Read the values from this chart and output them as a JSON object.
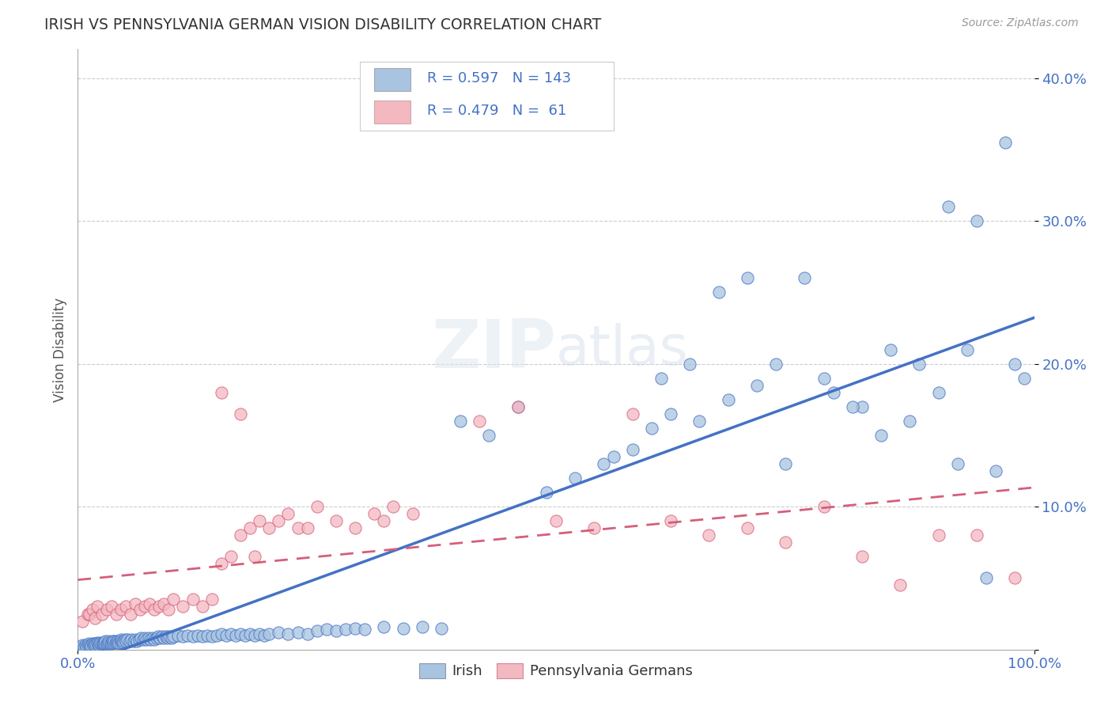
{
  "title": "IRISH VS PENNSYLVANIA GERMAN VISION DISABILITY CORRELATION CHART",
  "source": "Source: ZipAtlas.com",
  "ylabel": "Vision Disability",
  "xlim": [
    0,
    1
  ],
  "ylim": [
    0,
    0.42
  ],
  "irish_R": 0.597,
  "irish_N": 143,
  "pg_R": 0.479,
  "pg_N": 61,
  "irish_color": "#a8c4e0",
  "irish_line_color": "#4472c4",
  "pg_color": "#f4b8c1",
  "pg_line_color": "#d45f7a",
  "bg_color": "#ffffff",
  "legend_irish": "Irish",
  "legend_pg": "Pennsylvania Germans",
  "irish_x": [
    0.003,
    0.005,
    0.006,
    0.008,
    0.009,
    0.01,
    0.011,
    0.012,
    0.013,
    0.014,
    0.015,
    0.016,
    0.017,
    0.018,
    0.019,
    0.02,
    0.021,
    0.022,
    0.023,
    0.024,
    0.025,
    0.026,
    0.027,
    0.028,
    0.029,
    0.03,
    0.031,
    0.032,
    0.033,
    0.034,
    0.035,
    0.036,
    0.037,
    0.038,
    0.039,
    0.04,
    0.041,
    0.042,
    0.043,
    0.044,
    0.045,
    0.046,
    0.047,
    0.048,
    0.049,
    0.05,
    0.052,
    0.054,
    0.056,
    0.058,
    0.06,
    0.062,
    0.064,
    0.066,
    0.068,
    0.07,
    0.072,
    0.074,
    0.076,
    0.078,
    0.08,
    0.082,
    0.084,
    0.086,
    0.088,
    0.09,
    0.092,
    0.094,
    0.096,
    0.098,
    0.1,
    0.105,
    0.11,
    0.115,
    0.12,
    0.125,
    0.13,
    0.135,
    0.14,
    0.145,
    0.15,
    0.155,
    0.16,
    0.165,
    0.17,
    0.175,
    0.18,
    0.185,
    0.19,
    0.195,
    0.2,
    0.21,
    0.22,
    0.23,
    0.24,
    0.25,
    0.26,
    0.27,
    0.28,
    0.29,
    0.3,
    0.32,
    0.34,
    0.36,
    0.38,
    0.4,
    0.43,
    0.46,
    0.49,
    0.52,
    0.55,
    0.58,
    0.61,
    0.64,
    0.67,
    0.7,
    0.73,
    0.76,
    0.79,
    0.82,
    0.85,
    0.88,
    0.91,
    0.94,
    0.56,
    0.6,
    0.62,
    0.65,
    0.68,
    0.71,
    0.74,
    0.78,
    0.81,
    0.84,
    0.87,
    0.9,
    0.93,
    0.96,
    0.98,
    0.99,
    0.97,
    0.95,
    0.92
  ],
  "irish_y": [
    0.002,
    0.003,
    0.002,
    0.003,
    0.002,
    0.003,
    0.004,
    0.003,
    0.002,
    0.003,
    0.004,
    0.003,
    0.004,
    0.003,
    0.004,
    0.005,
    0.004,
    0.003,
    0.004,
    0.005,
    0.004,
    0.005,
    0.004,
    0.005,
    0.006,
    0.004,
    0.005,
    0.006,
    0.005,
    0.004,
    0.005,
    0.006,
    0.005,
    0.006,
    0.005,
    0.006,
    0.005,
    0.006,
    0.005,
    0.006,
    0.007,
    0.006,
    0.005,
    0.006,
    0.007,
    0.006,
    0.007,
    0.006,
    0.007,
    0.006,
    0.007,
    0.006,
    0.007,
    0.008,
    0.007,
    0.008,
    0.007,
    0.008,
    0.007,
    0.008,
    0.007,
    0.008,
    0.009,
    0.008,
    0.009,
    0.008,
    0.009,
    0.008,
    0.009,
    0.008,
    0.009,
    0.01,
    0.009,
    0.01,
    0.009,
    0.01,
    0.009,
    0.01,
    0.009,
    0.01,
    0.011,
    0.01,
    0.011,
    0.01,
    0.011,
    0.01,
    0.011,
    0.01,
    0.011,
    0.01,
    0.011,
    0.012,
    0.011,
    0.012,
    0.011,
    0.013,
    0.014,
    0.013,
    0.014,
    0.015,
    0.014,
    0.016,
    0.015,
    0.016,
    0.015,
    0.16,
    0.15,
    0.17,
    0.11,
    0.12,
    0.13,
    0.14,
    0.19,
    0.2,
    0.25,
    0.26,
    0.2,
    0.26,
    0.18,
    0.17,
    0.21,
    0.2,
    0.31,
    0.3,
    0.135,
    0.155,
    0.165,
    0.16,
    0.175,
    0.185,
    0.13,
    0.19,
    0.17,
    0.15,
    0.16,
    0.18,
    0.21,
    0.125,
    0.2,
    0.19,
    0.355,
    0.05,
    0.13
  ],
  "pg_x": [
    0.005,
    0.01,
    0.012,
    0.015,
    0.018,
    0.02,
    0.025,
    0.03,
    0.035,
    0.04,
    0.045,
    0.05,
    0.055,
    0.06,
    0.065,
    0.07,
    0.075,
    0.08,
    0.085,
    0.09,
    0.095,
    0.1,
    0.11,
    0.12,
    0.13,
    0.14,
    0.15,
    0.16,
    0.17,
    0.18,
    0.19,
    0.2,
    0.21,
    0.22,
    0.23,
    0.25,
    0.27,
    0.29,
    0.31,
    0.33,
    0.35,
    0.15,
    0.32,
    0.42,
    0.46,
    0.5,
    0.54,
    0.58,
    0.62,
    0.66,
    0.7,
    0.74,
    0.78,
    0.82,
    0.86,
    0.9,
    0.94,
    0.98,
    0.17,
    0.185,
    0.24
  ],
  "pg_y": [
    0.02,
    0.025,
    0.025,
    0.028,
    0.022,
    0.03,
    0.025,
    0.028,
    0.03,
    0.025,
    0.028,
    0.03,
    0.025,
    0.032,
    0.028,
    0.03,
    0.032,
    0.028,
    0.03,
    0.032,
    0.028,
    0.035,
    0.03,
    0.035,
    0.03,
    0.035,
    0.06,
    0.065,
    0.08,
    0.085,
    0.09,
    0.085,
    0.09,
    0.095,
    0.085,
    0.1,
    0.09,
    0.085,
    0.095,
    0.1,
    0.095,
    0.18,
    0.09,
    0.16,
    0.17,
    0.09,
    0.085,
    0.165,
    0.09,
    0.08,
    0.085,
    0.075,
    0.1,
    0.065,
    0.045,
    0.08,
    0.08,
    0.05,
    0.165,
    0.065,
    0.085
  ]
}
